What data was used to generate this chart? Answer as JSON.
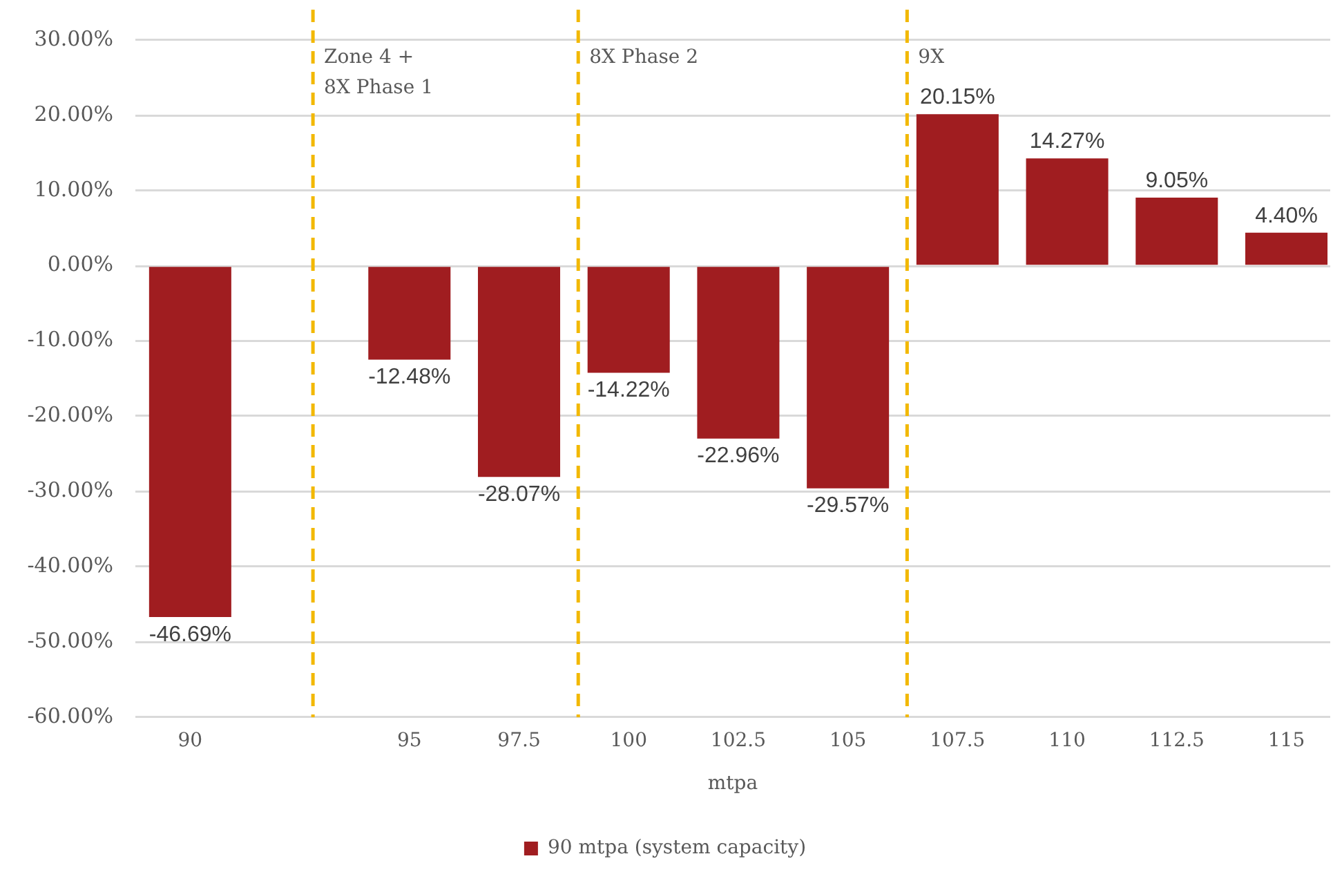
{
  "chart_data": {
    "type": "bar",
    "xlabel": "mtpa",
    "x": [
      90,
      95,
      97.5,
      100,
      102.5,
      105,
      107.5,
      110,
      112.5,
      115
    ],
    "series": [
      {
        "name": "90 mtpa (system capacity)",
        "color": "#a01d20",
        "values": [
          -46.69,
          -12.48,
          -28.07,
          -14.22,
          -22.96,
          -29.57,
          20.15,
          14.27,
          9.05,
          4.4
        ],
        "value_labels": [
          "-46.69%",
          "-12.48%",
          "-28.07%",
          "-14.22%",
          "-22.96%",
          "-29.57%",
          "20.15%",
          "14.27%",
          "9.05%",
          "4.40%"
        ]
      }
    ],
    "xlim": [
      88.75,
      116
    ],
    "xticks": [
      90,
      95,
      97.5,
      100,
      102.5,
      105,
      107.5,
      110,
      112.5,
      115
    ],
    "ylim": [
      -60,
      30
    ],
    "yticks": [
      {
        "value": -60,
        "label": "-60.00%"
      },
      {
        "value": -50,
        "label": "-50.00%"
      },
      {
        "value": -40,
        "label": "-40.00%"
      },
      {
        "value": -30,
        "label": "-30.00%"
      },
      {
        "value": -20,
        "label": "-20.00%"
      },
      {
        "value": -10,
        "label": "-10.00%"
      },
      {
        "value": 0,
        "label": "0.00%"
      },
      {
        "value": 10,
        "label": "10.00%"
      },
      {
        "value": 20,
        "label": "20.00%"
      },
      {
        "value": 30,
        "label": "30.00%"
      }
    ],
    "ref_lines": [
      {
        "axis": "x",
        "value": 92.8,
        "label": "Zone 4 +\n8X Phase 1",
        "color": "#f2b800",
        "line_style": "dashed"
      },
      {
        "axis": "x",
        "value": 98.85,
        "label": "8X Phase 2",
        "color": "#f2b800",
        "line_style": "dashed"
      },
      {
        "axis": "x",
        "value": 106.35,
        "label": "9X",
        "color": "#f2b800",
        "line_style": "dashed"
      }
    ],
    "grid": "y",
    "legend": "bottom"
  }
}
